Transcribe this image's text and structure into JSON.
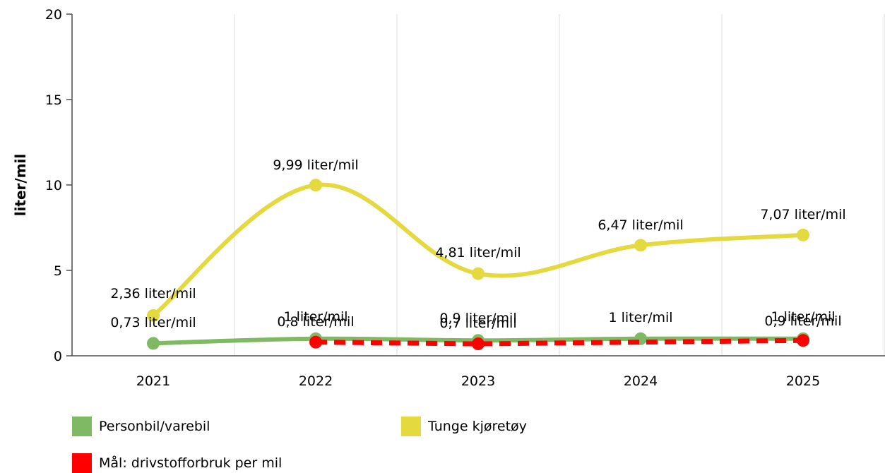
{
  "chart_data": {
    "type": "line",
    "title": "",
    "xlabel": "",
    "ylabel": "liter/mil",
    "categories": [
      "2021",
      "2022",
      "2023",
      "2024",
      "2025"
    ],
    "ylim": [
      0,
      20
    ],
    "yticks": [
      "0",
      "5",
      "10",
      "15",
      "20"
    ],
    "grid": true,
    "legend_position": "bottom-left",
    "series": [
      {
        "name": "Personbil/varebil",
        "color": "#80b964",
        "style": "solid-smooth",
        "values": [
          0.73,
          1,
          0.9,
          1,
          1
        ],
        "labels": [
          "0,73 liter/mil",
          "1 liter/mil",
          "0,9 liter/mil",
          "1 liter/mil",
          "1 liter/mil"
        ]
      },
      {
        "name": "Tunge kjøretøy",
        "color": "#e5d940",
        "style": "solid-smooth",
        "values": [
          2.36,
          9.99,
          4.81,
          6.47,
          7.07
        ],
        "labels": [
          "2,36 liter/mil",
          "9,99 liter/mil",
          "4,81 liter/mil",
          "6,47 liter/mil",
          "7,07 liter/mil"
        ]
      },
      {
        "name": "Mål: drivstofforbruk per mil",
        "color": "#ff0000",
        "style": "dashed",
        "values": [
          null,
          0.8,
          0.7,
          null,
          0.9
        ],
        "labels": [
          null,
          "0,8 liter/mil",
          "0,7 liter/mil",
          null,
          "0,9 liter/mil"
        ]
      }
    ]
  }
}
